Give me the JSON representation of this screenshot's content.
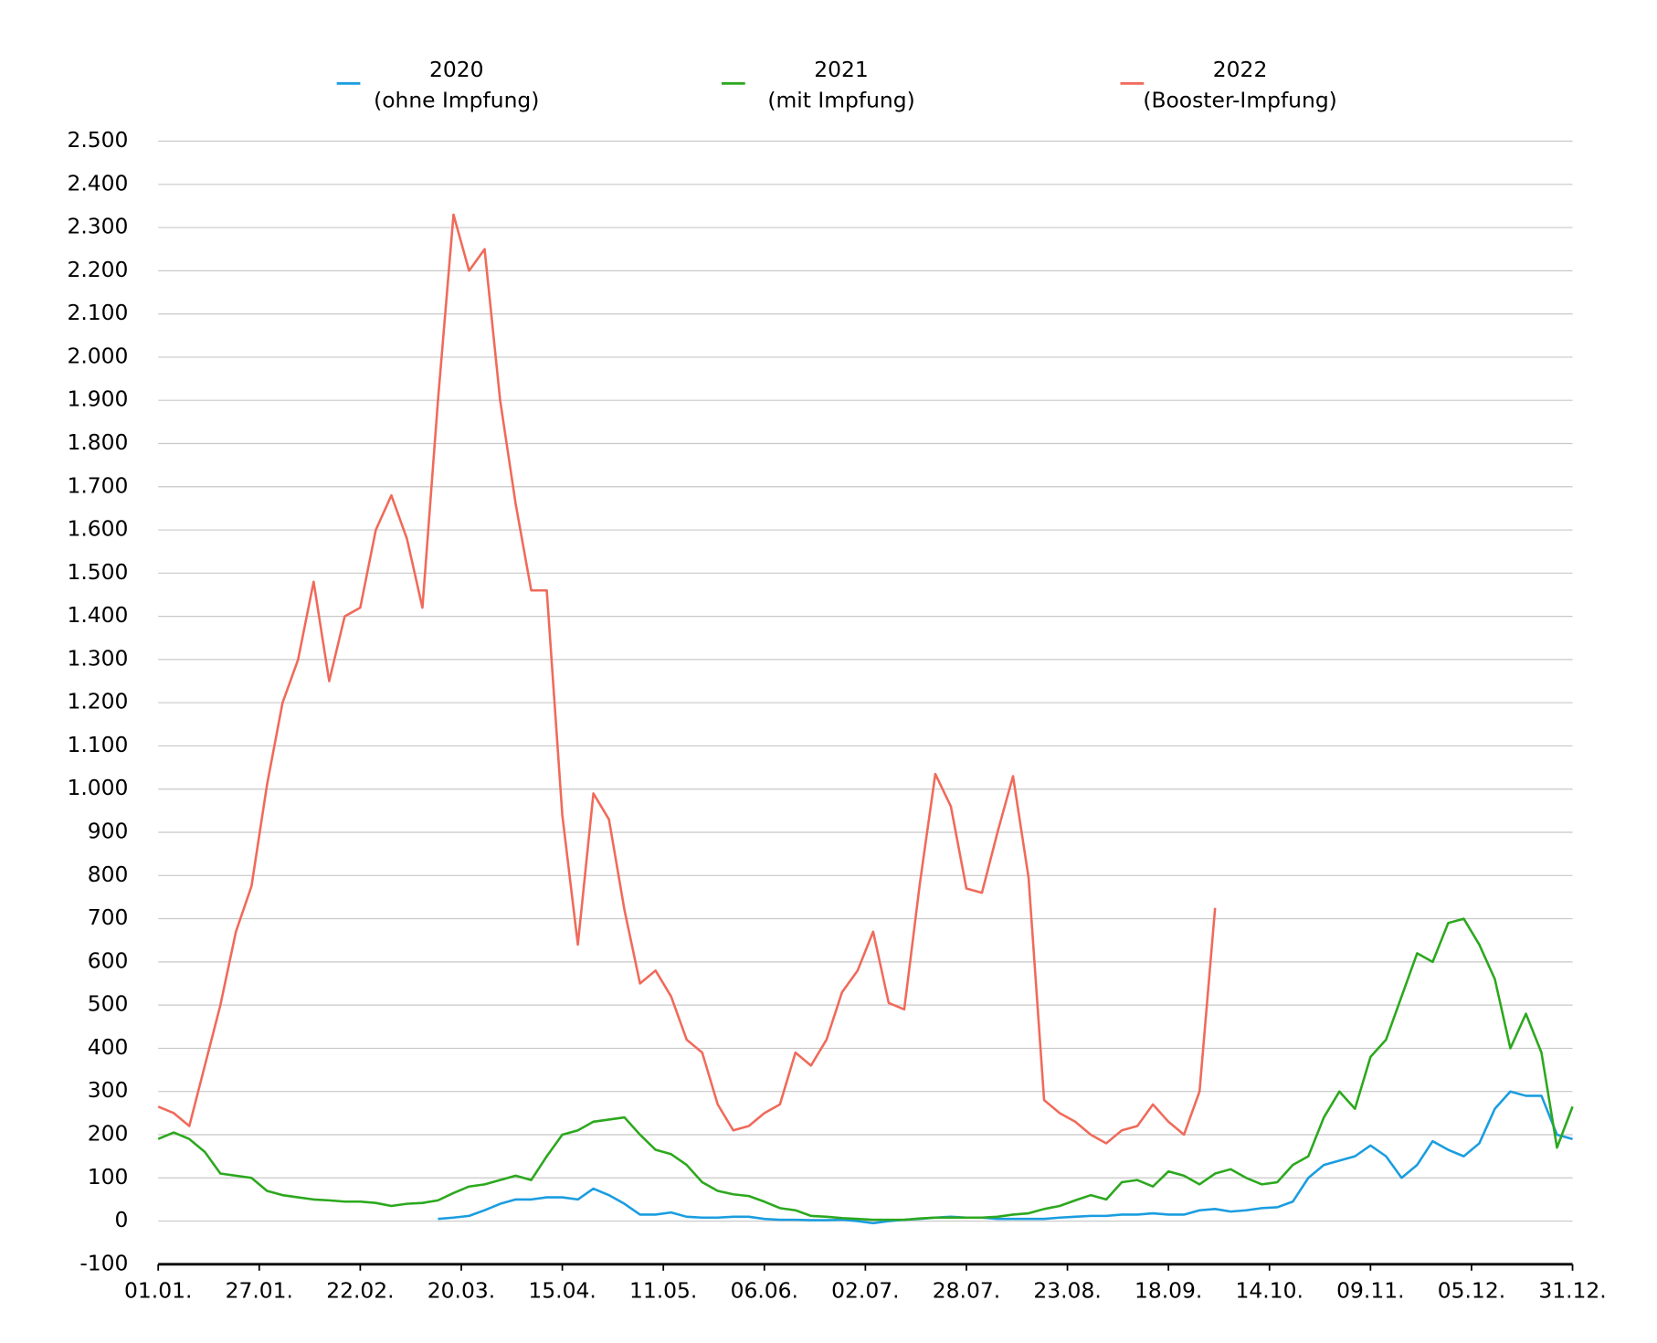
{
  "chart_data": {
    "type": "line",
    "x": [
      0,
      4,
      8,
      12,
      16,
      20,
      24,
      28,
      32,
      36,
      40,
      44,
      48,
      52,
      56,
      60,
      64,
      68,
      72,
      76,
      80,
      84,
      88,
      92,
      96,
      100,
      104,
      108,
      112,
      116,
      120,
      124,
      128,
      132,
      136,
      140,
      144,
      148,
      152,
      156,
      160,
      164,
      168,
      172,
      176,
      180,
      184,
      188,
      192,
      196,
      200,
      204,
      208,
      212,
      216,
      220,
      224,
      228,
      232,
      236,
      240,
      244,
      248,
      252,
      256,
      260,
      264,
      268,
      272,
      276,
      280,
      284,
      288,
      292,
      296,
      300,
      304,
      308,
      312,
      316,
      320,
      324,
      328,
      332,
      336,
      340,
      344,
      348,
      352,
      356,
      360,
      364
    ],
    "xlim": [
      0,
      364
    ],
    "xticks": [
      {
        "value": 0,
        "label": "01.01."
      },
      {
        "value": 26,
        "label": "27.01."
      },
      {
        "value": 52,
        "label": "22.02."
      },
      {
        "value": 78,
        "label": "20.03."
      },
      {
        "value": 104,
        "label": "15.04."
      },
      {
        "value": 130,
        "label": "11.05."
      },
      {
        "value": 156,
        "label": "06.06."
      },
      {
        "value": 182,
        "label": "02.07."
      },
      {
        "value": 208,
        "label": "28.07."
      },
      {
        "value": 234,
        "label": "23.08."
      },
      {
        "value": 260,
        "label": "18.09."
      },
      {
        "value": 286,
        "label": "14.10."
      },
      {
        "value": 312,
        "label": "09.11."
      },
      {
        "value": 338,
        "label": "05.12."
      },
      {
        "value": 364,
        "label": "31.12."
      }
    ],
    "ylim": [
      -100,
      2500
    ],
    "yticks": [
      -100,
      0,
      100,
      200,
      300,
      400,
      500,
      600,
      700,
      800,
      900,
      {
        "value": 1000,
        "label": "1.000"
      },
      {
        "value": 1100,
        "label": "1.100"
      },
      {
        "value": 1200,
        "label": "1.200"
      },
      {
        "value": 1300,
        "label": "1.300"
      },
      {
        "value": 1400,
        "label": "1.400"
      },
      {
        "value": 1500,
        "label": "1.500"
      },
      {
        "value": 1600,
        "label": "1.600"
      },
      {
        "value": 1700,
        "label": "1.700"
      },
      {
        "value": 1800,
        "label": "1.800"
      },
      {
        "value": 1900,
        "label": "1.900"
      },
      {
        "value": 2000,
        "label": "2.000"
      },
      {
        "value": 2100,
        "label": "2.100"
      },
      {
        "value": 2200,
        "label": "2.200"
      },
      {
        "value": 2300,
        "label": "2.300"
      },
      {
        "value": 2400,
        "label": "2.400"
      },
      {
        "value": 2500,
        "label": "2.500"
      }
    ],
    "grid": true,
    "series": [
      {
        "name": "2020",
        "description": "(ohne Impfung)",
        "color": "#1a9de0",
        "values": [
          null,
          null,
          null,
          null,
          null,
          null,
          null,
          null,
          null,
          null,
          null,
          null,
          null,
          null,
          null,
          null,
          null,
          null,
          5,
          8,
          12,
          25,
          40,
          50,
          50,
          55,
          55,
          50,
          75,
          60,
          40,
          15,
          15,
          20,
          10,
          8,
          8,
          10,
          10,
          5,
          3,
          3,
          2,
          2,
          3,
          0,
          -5,
          0,
          3,
          5,
          8,
          10,
          8,
          8,
          5,
          5,
          5,
          5,
          8,
          10,
          12,
          12,
          15,
          15,
          18,
          15,
          15,
          25,
          28,
          22,
          25,
          30,
          32,
          45,
          100,
          130,
          140,
          150,
          175,
          150,
          100,
          130,
          185,
          165,
          150,
          180,
          260,
          300,
          290,
          290,
          200,
          190
        ]
      },
      {
        "name": "2021",
        "description": "(mit Impfung)",
        "color": "#2ca81e",
        "values": [
          190,
          205,
          190,
          160,
          110,
          105,
          100,
          70,
          60,
          55,
          50,
          48,
          45,
          45,
          42,
          35,
          40,
          42,
          48,
          65,
          80,
          85,
          95,
          105,
          95,
          150,
          200,
          210,
          230,
          235,
          240,
          200,
          165,
          155,
          130,
          90,
          70,
          62,
          58,
          45,
          30,
          25,
          12,
          10,
          7,
          5,
          3,
          3,
          3,
          6,
          8,
          8,
          8,
          8,
          10,
          15,
          18,
          28,
          35,
          48,
          60,
          50,
          90,
          95,
          80,
          115,
          105,
          85,
          110,
          120,
          100,
          85,
          90,
          130,
          150,
          240,
          300,
          260,
          380,
          420,
          520,
          620,
          600,
          690,
          700,
          640,
          560,
          400,
          480,
          390,
          170,
          265
        ]
      },
      {
        "name": "2022",
        "description": "(Booster-Impfung)",
        "color": "#f06a5a",
        "values": [
          265,
          250,
          220,
          360,
          500,
          670,
          775,
          1010,
          1200,
          1300,
          1480,
          1250,
          1400,
          1420,
          1600,
          1680,
          1580,
          1420,
          1900,
          2330,
          2200,
          2250,
          1900,
          1660,
          1460,
          1460,
          940,
          640,
          990,
          930,
          720,
          550,
          580,
          520,
          420,
          390,
          270,
          210,
          220,
          250,
          270,
          390,
          360,
          420,
          530,
          580,
          670,
          505,
          490,
          780,
          1035,
          960,
          770,
          760,
          900,
          1030,
          795,
          280,
          250,
          230,
          200,
          180,
          210,
          220,
          270,
          230,
          200,
          300,
          725,
          null,
          null,
          null,
          null,
          null,
          null,
          null,
          null,
          null,
          null,
          null,
          null,
          null,
          null,
          null,
          null,
          null,
          null,
          null,
          null,
          null,
          null,
          null
        ]
      }
    ]
  }
}
